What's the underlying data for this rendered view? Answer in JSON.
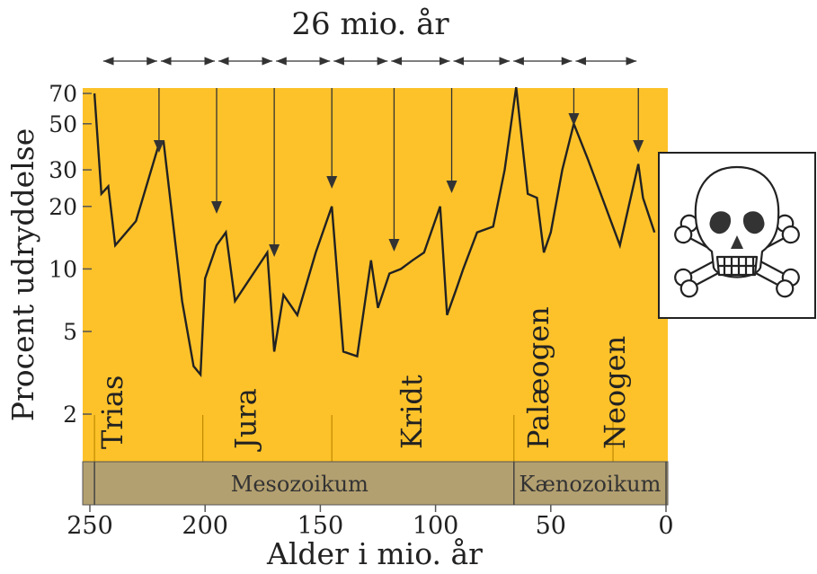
{
  "chart_data": {
    "type": "line",
    "title": "26 mio. år",
    "xlabel": "Alder i  mio. år",
    "ylabel": "Procent udryddelse",
    "x_reversed": true,
    "xlim": [
      250,
      0
    ],
    "y_scale": "log",
    "ylim": [
      1.4,
      80
    ],
    "x_ticks": [
      250,
      200,
      150,
      100,
      50,
      0
    ],
    "y_ticks": [
      2,
      5,
      10,
      20,
      30,
      50,
      70
    ],
    "series": [
      {
        "x": [
          248,
          245,
          242,
          239,
          230,
          220,
          218,
          210,
          205,
          202,
          200,
          195,
          191,
          187,
          173,
          170,
          166,
          160,
          152,
          145,
          140,
          134,
          128,
          125,
          120,
          115,
          110,
          105,
          98,
          95,
          91,
          88,
          82,
          75,
          70,
          65,
          60,
          56,
          53,
          50,
          45,
          40,
          34,
          20,
          12,
          10,
          5
        ],
        "y": [
          70,
          23,
          25,
          13,
          17,
          40,
          41,
          7,
          3.4,
          3.1,
          9,
          13,
          15,
          7,
          12,
          4,
          7.5,
          6,
          12,
          20,
          4,
          3.8,
          11,
          6.5,
          9.5,
          10,
          11,
          12,
          20,
          6,
          8,
          10,
          15,
          16,
          30,
          75,
          23,
          22,
          12,
          15,
          30,
          50,
          34,
          13,
          32,
          22,
          15
        ]
      }
    ],
    "extinction_arrows_x": [
      220,
      195,
      170,
      145,
      118,
      93,
      40,
      12
    ],
    "cycle_arrow_x": [
      245,
      220,
      195,
      170,
      145,
      120,
      93,
      67,
      40,
      12
    ],
    "periods": [
      {
        "name": "Trias",
        "from": 251,
        "to": 201
      },
      {
        "name": "Jura",
        "from": 201,
        "to": 145
      },
      {
        "name": "Kridt",
        "from": 145,
        "to": 66
      },
      {
        "name": "Palæogen",
        "from": 66,
        "to": 23
      },
      {
        "name": "Neogen",
        "from": 23,
        "to": 0
      }
    ],
    "eras": [
      {
        "name": "Mesozoikum",
        "from": 252,
        "to": 66
      },
      {
        "name": "Kænozoikum",
        "from": 66,
        "to": 0
      }
    ]
  },
  "colors": {
    "plot_bg": "#fdc22a",
    "era_band": "#b3a070",
    "line": "#222222"
  },
  "icon": "skull-and-crossbones-icon"
}
